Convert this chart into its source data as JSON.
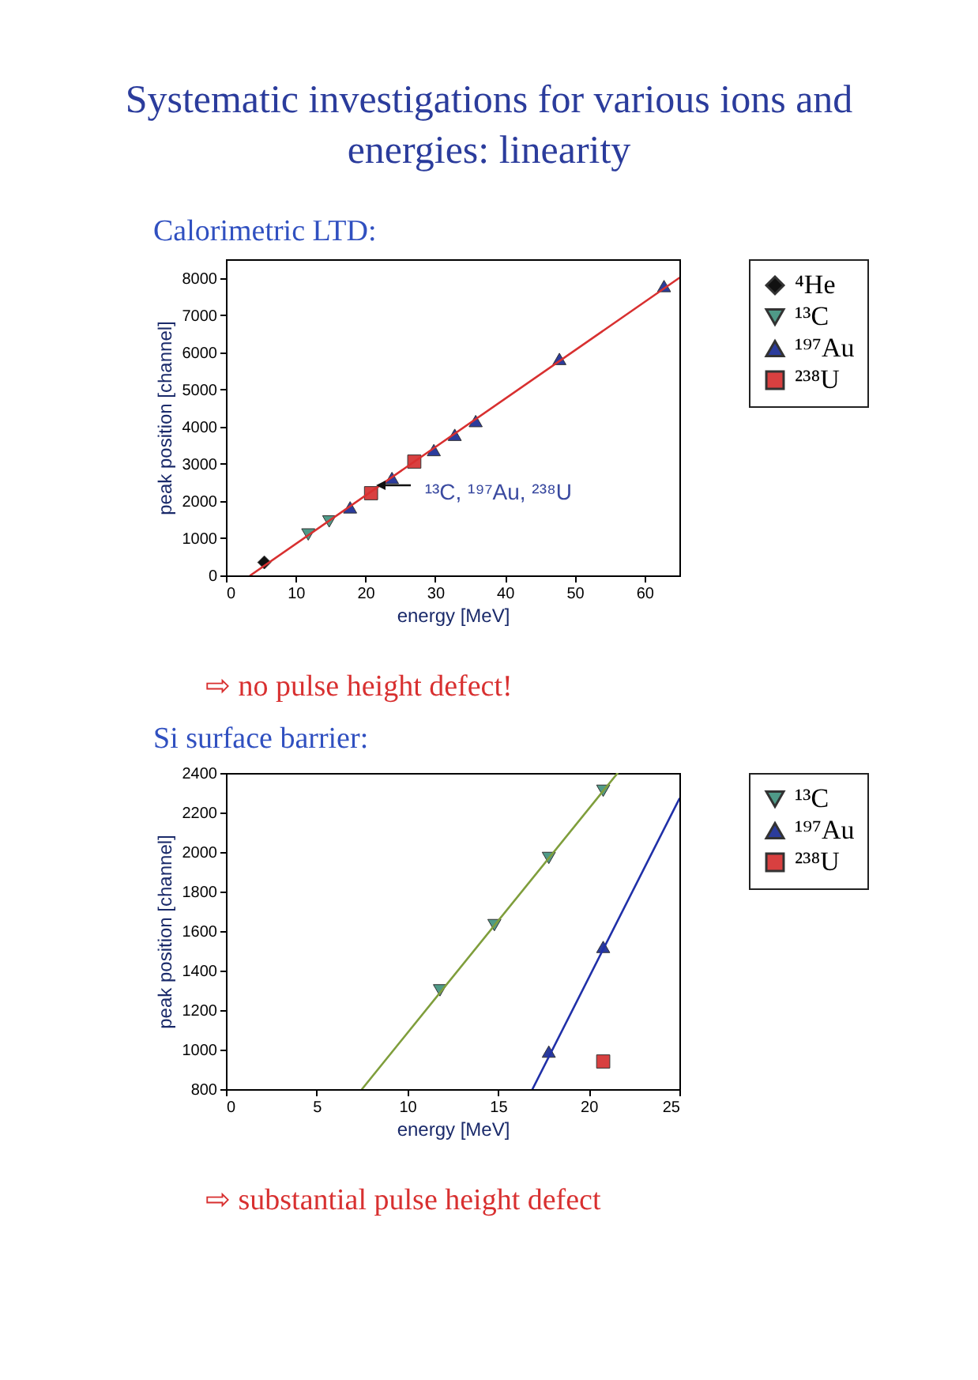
{
  "chart_data": [
    {
      "type": "scatter",
      "title": "Systematic investigations for various ions and energies: linearity",
      "subtitle": "Calorimetric LTD:",
      "xlabel": "energy [MeV]",
      "ylabel": "peak position [channel]",
      "xlim": [
        0,
        65
      ],
      "xticks": [
        0,
        10,
        20,
        30,
        40,
        50,
        60
      ],
      "ylim": [
        0,
        8500
      ],
      "yticks": [
        0,
        1000,
        2000,
        3000,
        4000,
        5000,
        6000,
        7000,
        8000
      ],
      "legend": "right",
      "annotations": [
        {
          "text": "¹³C, ¹⁹⁷Au, ²³⁸U",
          "x": 20.8,
          "y": 2210
        },
        "⇨ no pulse height defect!"
      ],
      "series": [
        {
          "name": "⁴He",
          "color": "#111111",
          "marker": "diamond",
          "x": [
            5.5
          ],
          "values": [
            350
          ]
        },
        {
          "name": "¹³C",
          "color": "#4f9a88",
          "marker": "triangle_down",
          "x": [
            11.8,
            14.8
          ],
          "values": [
            1100,
            1450
          ]
        },
        {
          "name": "¹⁹⁷Au",
          "color": "#2b3c9c",
          "marker": "triangle",
          "x": [
            17.8,
            23.8,
            29.8,
            32.8,
            35.8,
            47.8,
            62.8
          ],
          "values": [
            1830,
            2620,
            3370,
            3780,
            4150,
            5820,
            7780
          ]
        },
        {
          "name": "²³⁸U",
          "color": "#d84040",
          "marker": "square",
          "x": [
            20.8,
            27
          ],
          "values": [
            2210,
            3060
          ]
        },
        {
          "type": "line",
          "color": "#d83030",
          "x": [
            3.5,
            65
          ],
          "values": [
            0,
            8000
          ]
        }
      ]
    },
    {
      "type": "scatter",
      "subtitle": "Si surface barrier:",
      "xlabel": "energy [MeV]",
      "ylabel": "peak position [channel]",
      "xlim": [
        0,
        25
      ],
      "xticks": [
        0,
        5,
        10,
        15,
        20,
        25
      ],
      "ylim": [
        800,
        2400
      ],
      "yticks": [
        800,
        1000,
        1200,
        1400,
        1600,
        1800,
        2000,
        2200,
        2400
      ],
      "legend": "right",
      "annotations": [
        "⇨ substantial pulse height defect"
      ],
      "series": [
        {
          "name": "¹³C",
          "color": "#4f9a88",
          "marker": "triangle_down",
          "x": [
            11.8,
            14.8,
            17.8,
            20.8
          ],
          "values": [
            1300,
            1630,
            1970,
            2310
          ]
        },
        {
          "name": "¹⁹⁷Au",
          "color": "#2b3c9c",
          "marker": "triangle",
          "x": [
            17.8,
            20.8
          ],
          "values": [
            990,
            1520
          ]
        },
        {
          "name": "²³⁸U",
          "color": "#d84040",
          "marker": "square",
          "x": [
            20.8
          ],
          "values": [
            940
          ]
        },
        {
          "type": "line",
          "color": "#7f9e3c",
          "x": [
            7.5,
            21.6
          ],
          "values": [
            800,
            2400
          ]
        },
        {
          "type": "line",
          "color": "#2030a8",
          "x": [
            16.9,
            25
          ],
          "values": [
            800,
            2270
          ]
        }
      ]
    }
  ]
}
